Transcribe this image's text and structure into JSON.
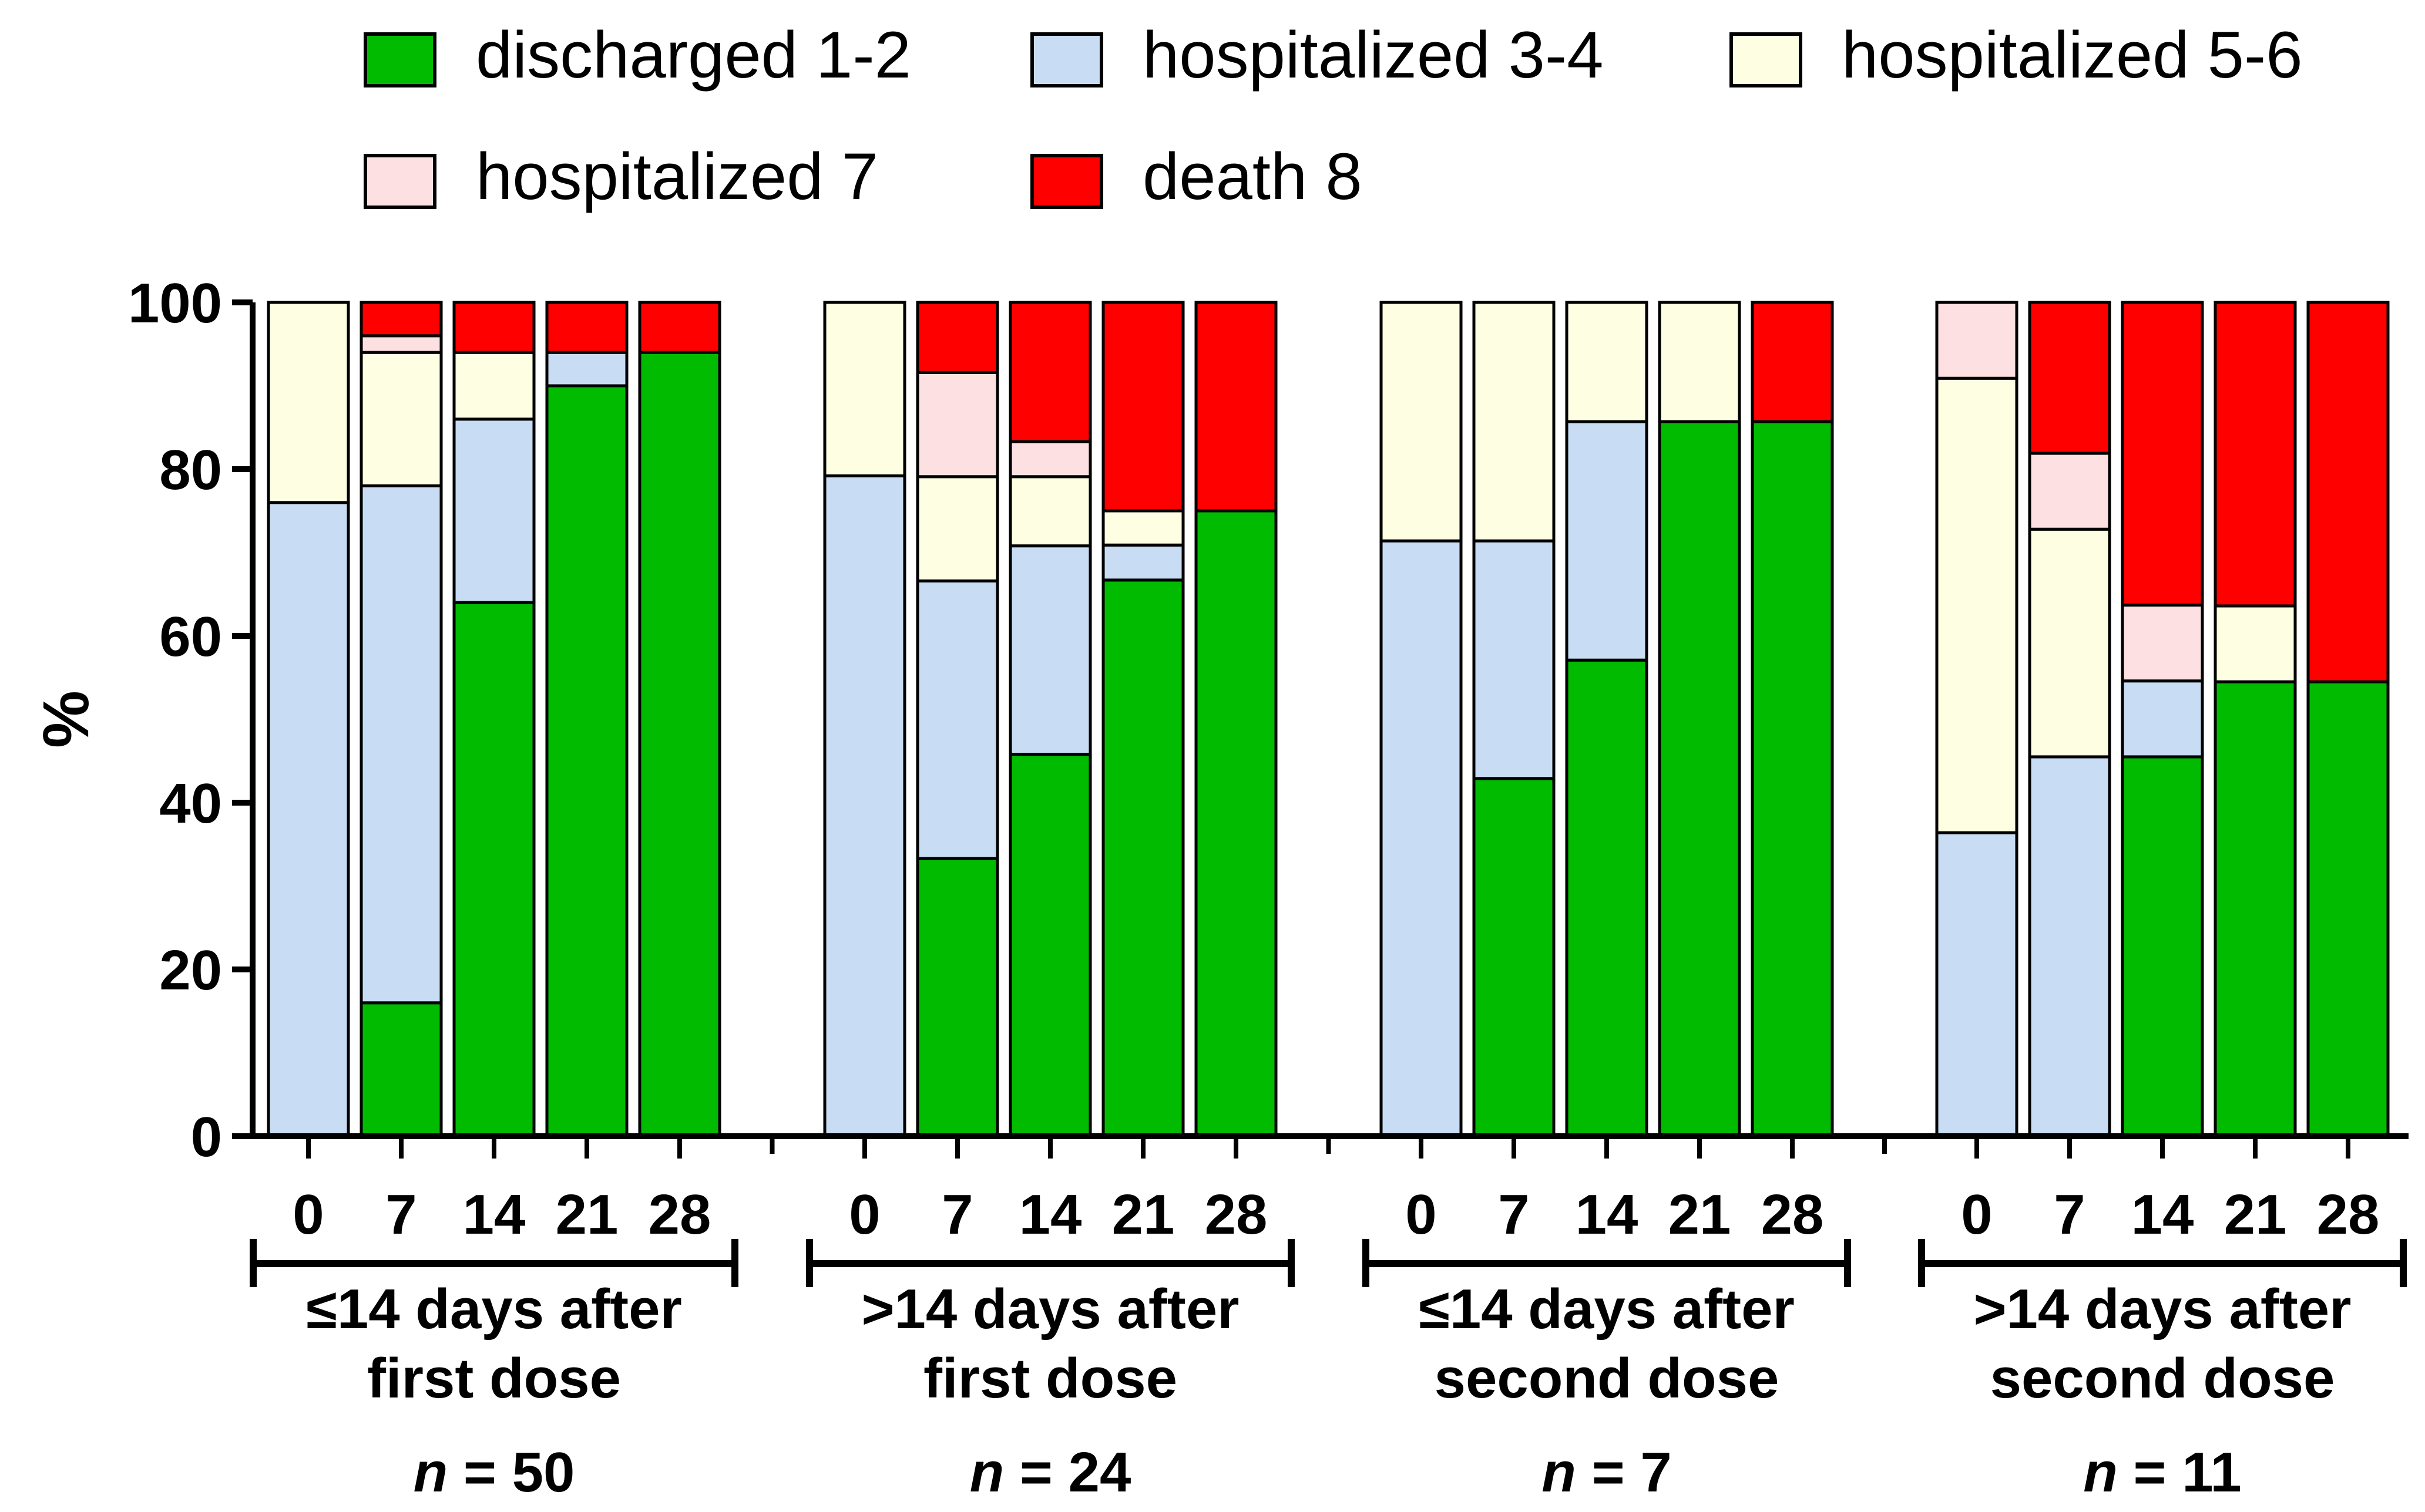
{
  "chart_data": {
    "type": "bar",
    "stacked": true,
    "ylabel": "%",
    "ylim": [
      0,
      100
    ],
    "yticks": [
      0,
      20,
      40,
      60,
      80,
      100
    ],
    "legend": [
      {
        "key": "d12",
        "label": "discharged 1-2",
        "color": "#00bb00"
      },
      {
        "key": "h34",
        "label": "hospitalized 3-4",
        "color": "#c8dcf4"
      },
      {
        "key": "h56",
        "label": "hospitalized 5-6",
        "color": "#fefee2"
      },
      {
        "key": "h7",
        "label": "hospitalized 7",
        "color": "#fde0e2"
      },
      {
        "key": "d8",
        "label": "death 8",
        "color": "#fe0000"
      }
    ],
    "groups": [
      {
        "label_line1": "≤14 days after",
        "label_line2": "first dose",
        "n_prefix": "n",
        "n_text": " = 50",
        "days": [
          "0",
          "7",
          "14",
          "21",
          "28"
        ],
        "bars": [
          {
            "d12": 0,
            "h34": 76,
            "h56": 24,
            "h7": 0,
            "d8": 0
          },
          {
            "d12": 16,
            "h34": 62,
            "h56": 16,
            "h7": 2,
            "d8": 4
          },
          {
            "d12": 64,
            "h34": 22,
            "h56": 8,
            "h7": 0,
            "d8": 6
          },
          {
            "d12": 90,
            "h34": 4,
            "h56": 0,
            "h7": 0,
            "d8": 6
          },
          {
            "d12": 94,
            "h34": 0,
            "h56": 0,
            "h7": 0,
            "d8": 6
          }
        ]
      },
      {
        "label_line1": ">14 days after",
        "label_line2": "first dose",
        "n_prefix": "n",
        "n_text": " = 24",
        "days": [
          "0",
          "7",
          "14",
          "21",
          "28"
        ],
        "bars": [
          {
            "d12": 0,
            "h34": 79.2,
            "h56": 20.8,
            "h7": 0,
            "d8": 0
          },
          {
            "d12": 33.3,
            "h34": 33.3,
            "h56": 12.5,
            "h7": 12.5,
            "d8": 8.4
          },
          {
            "d12": 45.8,
            "h34": 25.0,
            "h56": 8.3,
            "h7": 4.2,
            "d8": 16.7
          },
          {
            "d12": 66.7,
            "h34": 4.2,
            "h56": 4.1,
            "h7": 0,
            "d8": 25.0
          },
          {
            "d12": 75.0,
            "h34": 0,
            "h56": 0,
            "h7": 0,
            "d8": 25.0
          }
        ]
      },
      {
        "label_line1": "≤14 days after",
        "label_line2": "second dose",
        "n_prefix": "n",
        "n_text": " = 7",
        "days": [
          "0",
          "7",
          "14",
          "21",
          "28"
        ],
        "bars": [
          {
            "d12": 0,
            "h34": 71.4,
            "h56": 28.6,
            "h7": 0,
            "d8": 0
          },
          {
            "d12": 42.9,
            "h34": 28.5,
            "h56": 28.6,
            "h7": 0,
            "d8": 0
          },
          {
            "d12": 57.1,
            "h34": 28.6,
            "h56": 14.3,
            "h7": 0,
            "d8": 0
          },
          {
            "d12": 85.7,
            "h34": 0,
            "h56": 14.3,
            "h7": 0,
            "d8": 0
          },
          {
            "d12": 85.7,
            "h34": 0,
            "h56": 0,
            "h7": 0,
            "d8": 14.3
          }
        ]
      },
      {
        "label_line1": ">14 days after",
        "label_line2": "second dose",
        "n_prefix": "n",
        "n_text": " = 11",
        "days": [
          "0",
          "7",
          "14",
          "21",
          "28"
        ],
        "bars": [
          {
            "d12": 0,
            "h34": 36.4,
            "h56": 54.5,
            "h7": 9.1,
            "d8": 0
          },
          {
            "d12": 0,
            "h34": 45.5,
            "h56": 27.3,
            "h7": 9.1,
            "d8": 18.1
          },
          {
            "d12": 45.5,
            "h34": 9.1,
            "h56": 0,
            "h7": 9.1,
            "d8": 36.3
          },
          {
            "d12": 54.5,
            "h34": 0,
            "h56": 9.1,
            "h7": 0,
            "d8": 36.4
          },
          {
            "d12": 54.5,
            "h34": 0,
            "h56": 0,
            "h7": 0,
            "d8": 45.5
          }
        ]
      }
    ]
  }
}
